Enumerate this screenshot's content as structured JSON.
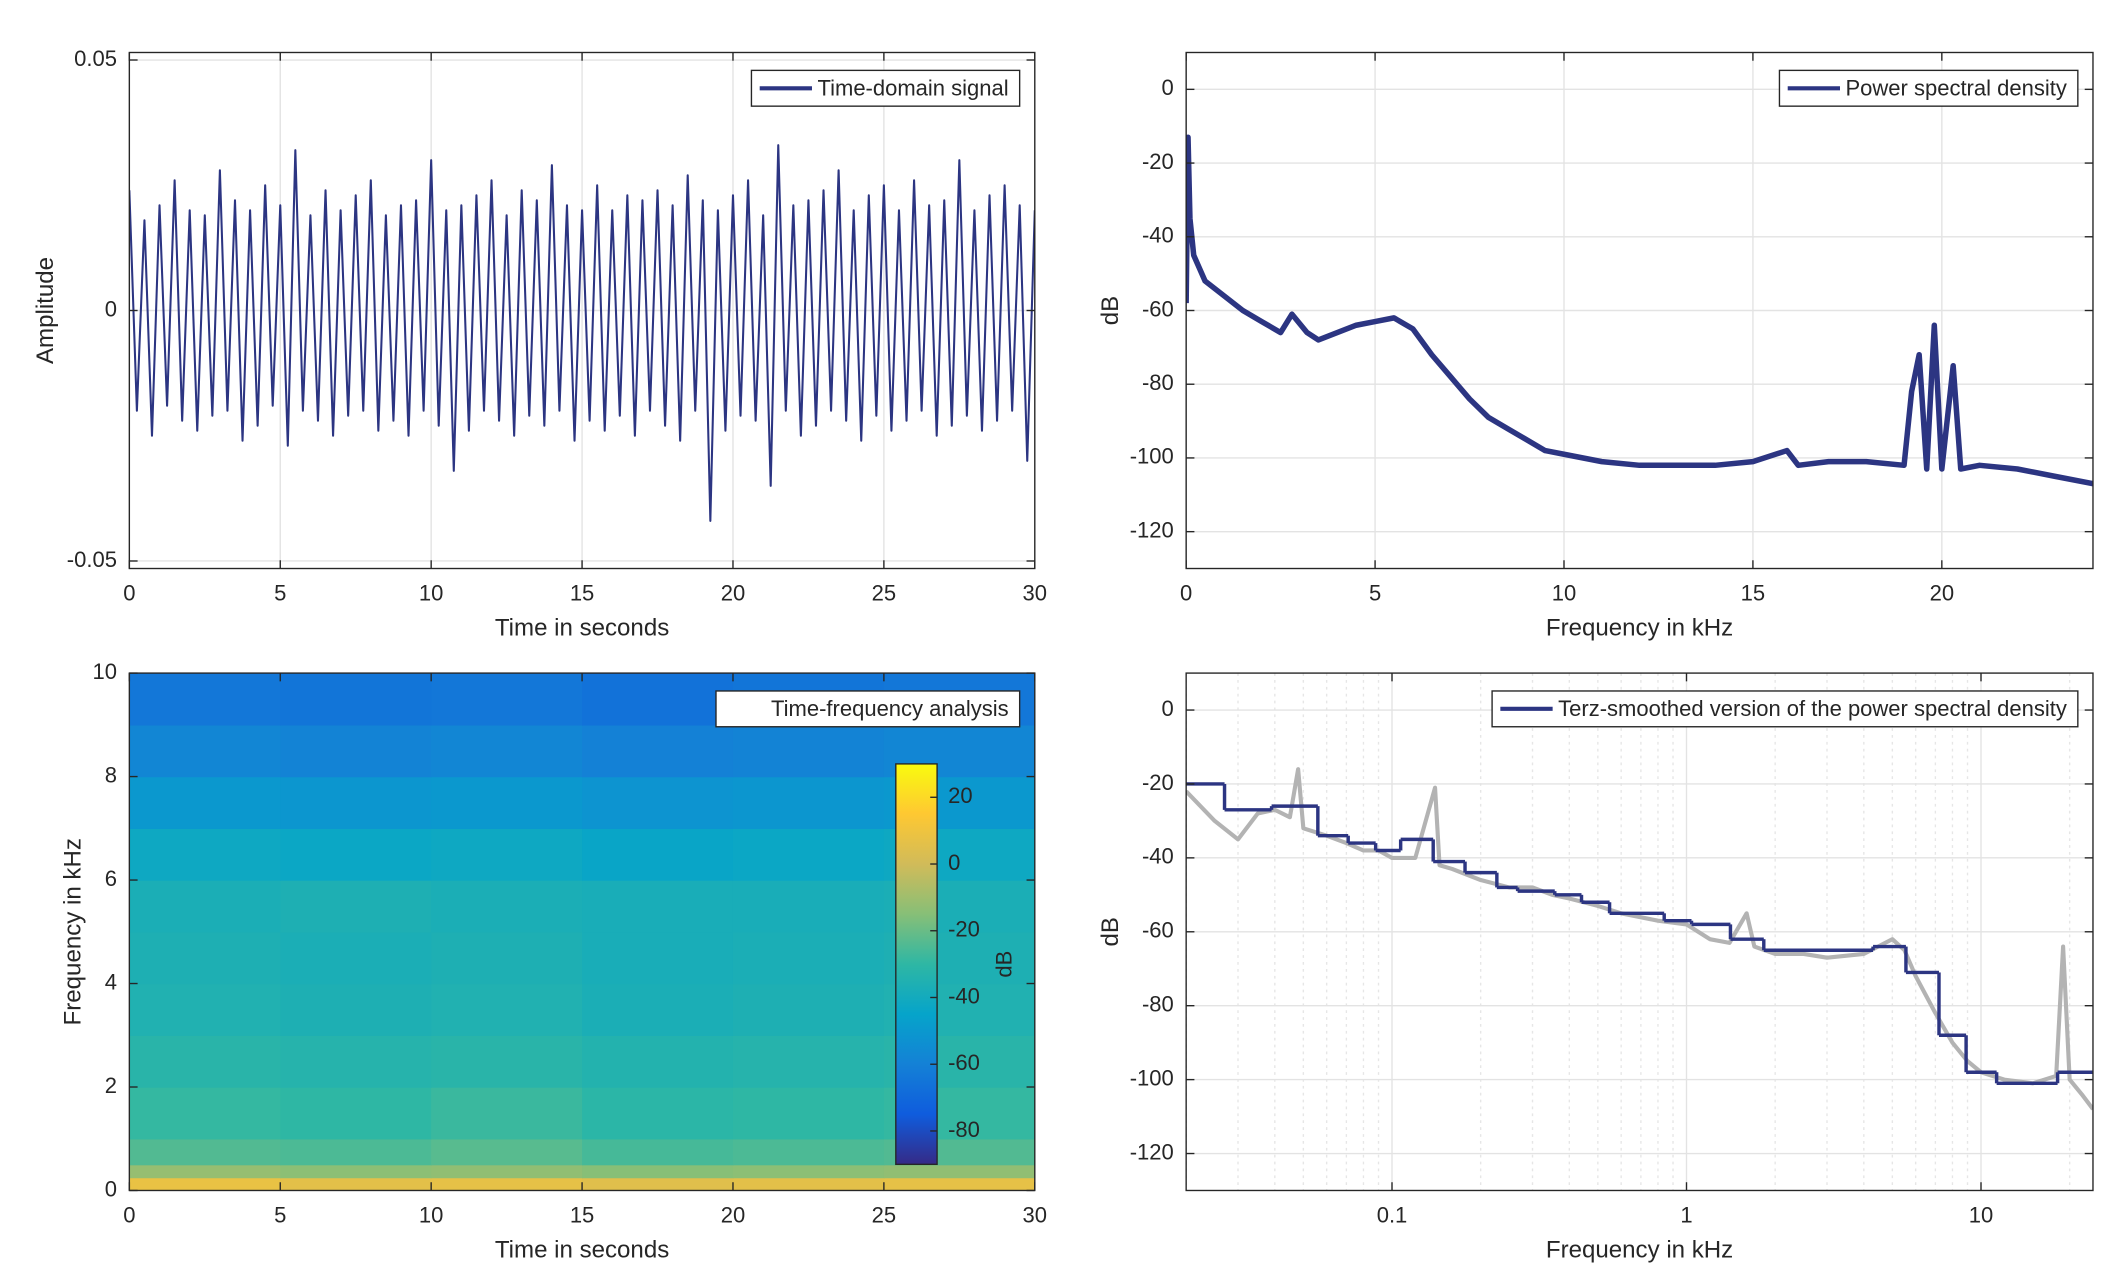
{
  "chart_data": [
    {
      "type": "line",
      "xlabel": "Time in seconds",
      "ylabel": "Amplitude",
      "xlim": [
        0,
        30
      ],
      "ylim": [
        -0.0515,
        0.0515
      ],
      "xticks": [
        0,
        5,
        10,
        15,
        20,
        25,
        30
      ],
      "yticks": [
        -0.05,
        0,
        0.05
      ],
      "grid": true,
      "legend_loc": "upper right",
      "series": [
        {
          "name": "Time-domain signal",
          "color": "#2c3582",
          "x": [
            0,
            0.25,
            0.5,
            0.75,
            1,
            1.25,
            1.5,
            1.75,
            2,
            2.25,
            2.5,
            2.75,
            3,
            3.25,
            3.5,
            3.75,
            4,
            4.25,
            4.5,
            4.75,
            5,
            5.25,
            5.5,
            5.75,
            6,
            6.25,
            6.5,
            6.75,
            7,
            7.25,
            7.5,
            7.75,
            8,
            8.25,
            8.5,
            8.75,
            9,
            9.25,
            9.5,
            9.75,
            10,
            10.25,
            10.5,
            10.75,
            11,
            11.25,
            11.5,
            11.75,
            12,
            12.25,
            12.5,
            12.75,
            13,
            13.25,
            13.5,
            13.75,
            14,
            14.25,
            14.5,
            14.75,
            15,
            15.25,
            15.5,
            15.75,
            16,
            16.25,
            16.5,
            16.75,
            17,
            17.25,
            17.5,
            17.75,
            18,
            18.25,
            18.5,
            18.75,
            19,
            19.25,
            19.5,
            19.75,
            20,
            20.25,
            20.5,
            20.75,
            21,
            21.25,
            21.5,
            21.75,
            22,
            22.25,
            22.5,
            22.75,
            23,
            23.25,
            23.5,
            23.75,
            24,
            24.25,
            24.5,
            24.75,
            25,
            25.25,
            25.5,
            25.75,
            26,
            26.25,
            26.5,
            26.75,
            27,
            27.25,
            27.5,
            27.75,
            28,
            28.25,
            28.5,
            28.75,
            29,
            29.25,
            29.5,
            29.75,
            30
          ],
          "values": [
            0.024,
            -0.02,
            0.018,
            -0.025,
            0.021,
            -0.019,
            0.026,
            -0.022,
            0.02,
            -0.024,
            0.019,
            -0.021,
            0.028,
            -0.02,
            0.022,
            -0.026,
            0.02,
            -0.023,
            0.025,
            -0.019,
            0.021,
            -0.027,
            0.032,
            -0.02,
            0.019,
            -0.022,
            0.024,
            -0.025,
            0.02,
            -0.021,
            0.023,
            -0.02,
            0.026,
            -0.024,
            0.019,
            -0.022,
            0.021,
            -0.025,
            0.022,
            -0.02,
            0.03,
            -0.023,
            0.02,
            -0.032,
            0.021,
            -0.024,
            0.023,
            -0.02,
            0.026,
            -0.022,
            0.019,
            -0.025,
            0.024,
            -0.021,
            0.022,
            -0.023,
            0.029,
            -0.02,
            0.021,
            -0.026,
            0.02,
            -0.022,
            0.025,
            -0.024,
            0.02,
            -0.021,
            0.023,
            -0.025,
            0.022,
            -0.02,
            0.024,
            -0.023,
            0.021,
            -0.026,
            0.027,
            -0.02,
            0.022,
            -0.042,
            0.02,
            -0.024,
            0.023,
            -0.021,
            0.026,
            -0.022,
            0.019,
            -0.035,
            0.033,
            -0.02,
            0.021,
            -0.025,
            0.022,
            -0.023,
            0.024,
            -0.02,
            0.028,
            -0.022,
            0.02,
            -0.026,
            0.023,
            -0.021,
            0.025,
            -0.024,
            0.02,
            -0.022,
            0.026,
            -0.02,
            0.021,
            -0.025,
            0.022,
            -0.023,
            0.03,
            -0.021,
            0.02,
            -0.024,
            0.023,
            -0.022,
            0.025,
            -0.02,
            0.021,
            -0.03,
            0.02
          ]
        }
      ]
    },
    {
      "type": "line",
      "xlabel": "Frequency in kHz",
      "ylabel": "dB",
      "xlim": [
        0,
        24
      ],
      "ylim": [
        -130,
        10
      ],
      "xticks": [
        0,
        5,
        10,
        15,
        20
      ],
      "yticks": [
        -120,
        -100,
        -80,
        -60,
        -40,
        -20,
        0
      ],
      "grid": true,
      "legend_loc": "upper right",
      "series": [
        {
          "name": "Power spectral density",
          "color": "#2c3582",
          "x": [
            0,
            0.05,
            0.1,
            0.2,
            0.5,
            1,
            1.5,
            2,
            2.5,
            2.8,
            3.2,
            3.5,
            4,
            4.5,
            5,
            5.5,
            6,
            6.5,
            7,
            7.5,
            8,
            8.5,
            9,
            9.5,
            10,
            11,
            12,
            13,
            14,
            15,
            15.9,
            16.2,
            17,
            18,
            19,
            19.2,
            19.4,
            19.6,
            19.8,
            20,
            20.3,
            20.5,
            21,
            22,
            23,
            24
          ],
          "values": [
            -58,
            -13,
            -35,
            -45,
            -52,
            -56,
            -60,
            -63,
            -66,
            -61,
            -66,
            -68,
            -66,
            -64,
            -63,
            -62,
            -65,
            -72,
            -78,
            -84,
            -89,
            -92,
            -95,
            -98,
            -99,
            -101,
            -102,
            -102,
            -102,
            -101,
            -98,
            -102,
            -101,
            -101,
            -102,
            -82,
            -72,
            -103,
            -64,
            -103,
            -75,
            -103,
            -102,
            -103,
            -105,
            -107
          ]
        }
      ]
    },
    {
      "type": "heatmap",
      "xlabel": "Time in seconds",
      "ylabel": "Frequency in kHz",
      "xlim": [
        0,
        30
      ],
      "ylim": [
        0,
        10
      ],
      "xticks": [
        0,
        5,
        10,
        15,
        20,
        25,
        30
      ],
      "yticks": [
        0,
        2,
        4,
        6,
        8,
        10
      ],
      "legend": "Time-frequency analysis",
      "legend_loc": "upper right",
      "colormap": "parula",
      "clim": [
        -90,
        30
      ],
      "cticks": [
        -80,
        -60,
        -40,
        -20,
        0,
        20
      ],
      "clabel": "dB",
      "xbins": [
        0,
        5,
        10,
        15,
        20,
        25,
        30
      ],
      "ybins": [
        0,
        0.25,
        0.5,
        1,
        2,
        3,
        4,
        5,
        6,
        7,
        8,
        9,
        10
      ],
      "values": [
        [
          8,
          6,
          7,
          5,
          6,
          7
        ],
        [
          -12,
          -14,
          -13,
          -15,
          -14,
          -13
        ],
        [
          -24,
          -25,
          -23,
          -26,
          -25,
          -24
        ],
        [
          -29,
          -30,
          -28,
          -31,
          -30,
          -29
        ],
        [
          -32,
          -33,
          -32,
          -34,
          -33,
          -32
        ],
        [
          -35,
          -36,
          -35,
          -37,
          -36,
          -35
        ],
        [
          -36,
          -37,
          -36,
          -38,
          -37,
          -36
        ],
        [
          -37,
          -36,
          -37,
          -38,
          -38,
          -37
        ],
        [
          -42,
          -43,
          -42,
          -44,
          -43,
          -42
        ],
        [
          -50,
          -51,
          -50,
          -52,
          -51,
          -50
        ],
        [
          -58,
          -59,
          -58,
          -60,
          -59,
          -58
        ],
        [
          -64,
          -65,
          -64,
          -66,
          -65,
          -64
        ]
      ]
    },
    {
      "type": "line",
      "xlabel": "Frequency in kHz",
      "ylabel": "dB",
      "xscale": "log",
      "xlim": [
        0.02,
        24
      ],
      "ylim": [
        -130,
        10
      ],
      "xticks": [
        0.1,
        1,
        10
      ],
      "yticks": [
        -120,
        -100,
        -80,
        -60,
        -40,
        -20,
        0
      ],
      "xminorticks": [
        0.02,
        0.03,
        0.04,
        0.05,
        0.06,
        0.07,
        0.08,
        0.09,
        0.2,
        0.3,
        0.4,
        0.5,
        0.6,
        0.7,
        0.8,
        0.9,
        2,
        3,
        4,
        5,
        6,
        7,
        8,
        9,
        20
      ],
      "grid": true,
      "legend_loc": "upper right",
      "series": [
        {
          "color": "#b3b3b3",
          "x": [
            0.02,
            0.025,
            0.03,
            0.035,
            0.04,
            0.045,
            0.048,
            0.05,
            0.06,
            0.07,
            0.08,
            0.09,
            0.1,
            0.12,
            0.14,
            0.145,
            0.16,
            0.2,
            0.25,
            0.3,
            0.35,
            0.4,
            0.5,
            0.6,
            0.8,
            1,
            1.2,
            1.4,
            1.6,
            1.7,
            2,
            2.5,
            3,
            4,
            5,
            5.5,
            6,
            7,
            8,
            9,
            10,
            12,
            15,
            18,
            19,
            20,
            22,
            24
          ],
          "values": [
            -22,
            -30,
            -35,
            -28,
            -27,
            -29,
            -16,
            -32,
            -34,
            -36,
            -38,
            -38,
            -40,
            -40,
            -21,
            -42,
            -43,
            -46,
            -48,
            -48,
            -50,
            -51,
            -53,
            -55,
            -57,
            -58,
            -62,
            -63,
            -55,
            -64,
            -66,
            -66,
            -67,
            -66,
            -62,
            -65,
            -72,
            -82,
            -90,
            -95,
            -98,
            -100,
            -101,
            -99,
            -64,
            -100,
            -104,
            -108
          ]
        },
        {
          "name": "Terz-smoothed version of the power spectral density",
          "color": "#2c3582",
          "step": "post",
          "x": [
            0.02,
            0.027,
            0.039,
            0.056,
            0.071,
            0.088,
            0.107,
            0.138,
            0.177,
            0.227,
            0.267,
            0.357,
            0.44,
            0.548,
            0.84,
            1.04,
            1.41,
            1.83,
            4.3,
            5.56,
            7.2,
            8.9,
            11.3,
            18.2
          ],
          "values": [
            -20,
            -27,
            -26,
            -34,
            -36,
            -38,
            -35,
            -41,
            -44,
            -48,
            -49,
            -50,
            -52,
            -55,
            -57,
            -58,
            -62,
            -65,
            -64,
            -71,
            -88,
            -98,
            -101,
            -98
          ]
        }
      ]
    }
  ]
}
